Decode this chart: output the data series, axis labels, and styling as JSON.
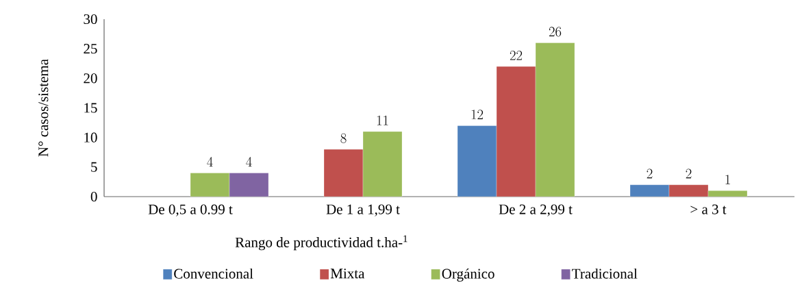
{
  "chart_data": {
    "type": "bar",
    "xlabel": "Rango de productividad  t.ha-$^{1}$",
    "ylabel": "N° casos/sistema",
    "categories": [
      "De 0,5 a 0.99 t",
      "De 1 a 1,99 t",
      "De 2 a 2,99 t",
      "> a 3 t"
    ],
    "series": [
      {
        "name": "Convencional",
        "color": "#4f81bd",
        "values": [
          null,
          null,
          12,
          2
        ]
      },
      {
        "name": "Mixta",
        "color": "#c0504d",
        "values": [
          null,
          8,
          22,
          2
        ]
      },
      {
        "name": "Orgánico",
        "color": "#9bbb59",
        "values": [
          4,
          11,
          26,
          1
        ]
      },
      {
        "name": "Tradicional",
        "color": "#8064a2",
        "values": [
          4,
          null,
          null,
          null
        ]
      }
    ],
    "ylim": [
      0,
      30
    ],
    "yticks": [
      0,
      5,
      10,
      15,
      20,
      25,
      30
    ],
    "data_labels": true,
    "legend": "bottom"
  }
}
